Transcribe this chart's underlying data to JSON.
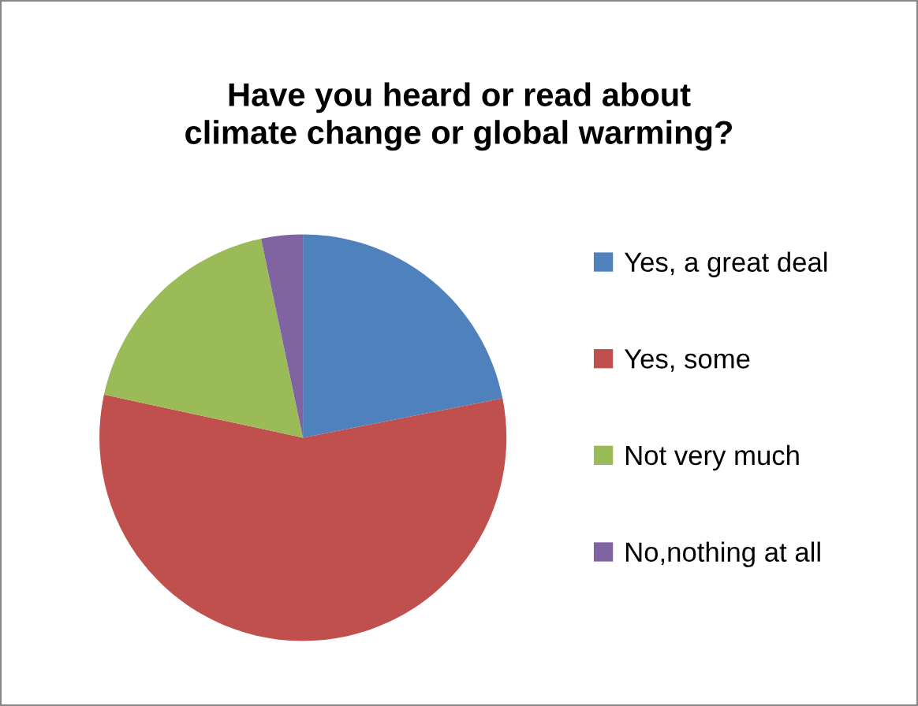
{
  "chart_data": {
    "type": "pie",
    "title": "Have you heard or read about\nclimate change or global warming?",
    "categories": [
      "Yes, a great deal",
      "Yes, some",
      "Not very much",
      "No,nothing at all"
    ],
    "values": [
      21.9,
      56.5,
      18.3,
      3.3
    ],
    "colors": [
      "#4f81bd",
      "#c0504d",
      "#9bbb59",
      "#8064a2"
    ],
    "legend": "right"
  }
}
